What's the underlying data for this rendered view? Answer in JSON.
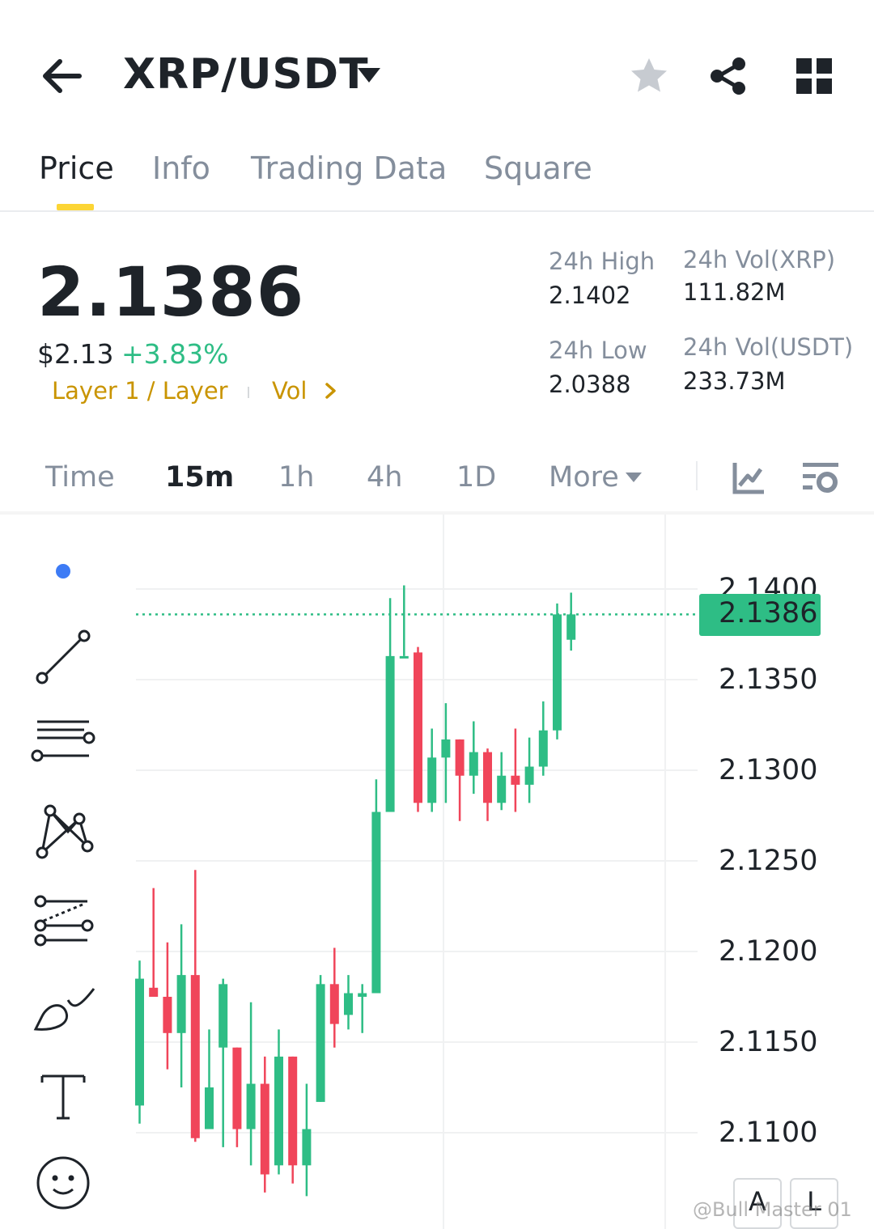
{
  "header": {
    "pair": "XRP/USDT"
  },
  "tabs": [
    {
      "label": "Price",
      "active": true
    },
    {
      "label": "Info",
      "active": false
    },
    {
      "label": "Trading Data",
      "active": false
    },
    {
      "label": "Square",
      "active": false
    }
  ],
  "ticker": {
    "last_price": "2.1386",
    "usd_price": "$2.13",
    "change_pct": "+3.83%",
    "tags": "Layer 1 / Layer",
    "vol_tag": "Vol",
    "stats": {
      "high_label": "24h High",
      "high_value": "2.1402",
      "low_label": "24h Low",
      "low_value": "2.0388",
      "vol_base_label": "24h Vol(XRP)",
      "vol_base_value": "111.82M",
      "vol_quote_label": "24h Vol(USDT)",
      "vol_quote_value": "233.73M"
    }
  },
  "intervals": [
    {
      "label": "Time",
      "active": false
    },
    {
      "label": "15m",
      "active": true
    },
    {
      "label": "1h",
      "active": false
    },
    {
      "label": "4h",
      "active": false
    },
    {
      "label": "1D",
      "active": false
    },
    {
      "label": "More",
      "active": false
    }
  ],
  "colors": {
    "up": "#2ebd85",
    "down": "#f0455a",
    "accent": "#fcd535",
    "tag": "#c99400"
  },
  "icons": {
    "back": "arrow-left-icon",
    "star": "star-icon",
    "share": "share-icon",
    "grid": "grid-icon",
    "indicator": "indicator-icon",
    "settings": "chart-settings-icon"
  },
  "drawing_tools": [
    "trend-line-icon",
    "parallel-lines-icon",
    "pattern-icon",
    "fib-icon",
    "brush-icon",
    "text-icon",
    "emoji-icon"
  ],
  "chart_data": {
    "type": "candlestick",
    "current_price": 2.1386,
    "current_price_label": "2.1386",
    "y_ticks": [
      2.14,
      2.135,
      2.13,
      2.125,
      2.12,
      2.115,
      2.11
    ],
    "y_tick_labels": [
      "2.1400",
      "2.1350",
      "2.1300",
      "2.1250",
      "2.1200",
      "2.1150",
      "2.1100"
    ],
    "ylim": [
      2.107,
      2.143
    ],
    "candles": [
      {
        "o": 2.1115,
        "h": 2.1195,
        "l": 2.1105,
        "c": 2.1185
      },
      {
        "o": 2.118,
        "h": 2.1235,
        "l": 2.1175,
        "c": 2.1175
      },
      {
        "o": 2.1175,
        "h": 2.1205,
        "l": 2.1135,
        "c": 2.1155
      },
      {
        "o": 2.1155,
        "h": 2.1215,
        "l": 2.1125,
        "c": 2.1187
      },
      {
        "o": 2.1187,
        "h": 2.1245,
        "l": 2.1095,
        "c": 2.1097
      },
      {
        "o": 2.1102,
        "h": 2.1157,
        "l": 2.1102,
        "c": 2.1125
      },
      {
        "o": 2.1147,
        "h": 2.1185,
        "l": 2.1092,
        "c": 2.1182
      },
      {
        "o": 2.1147,
        "h": 2.1147,
        "l": 2.1092,
        "c": 2.1102
      },
      {
        "o": 2.1102,
        "h": 2.1172,
        "l": 2.1082,
        "c": 2.1127
      },
      {
        "o": 2.1127,
        "h": 2.1142,
        "l": 2.1067,
        "c": 2.1077
      },
      {
        "o": 2.1082,
        "h": 2.1157,
        "l": 2.1077,
        "c": 2.1142
      },
      {
        "o": 2.1142,
        "h": 2.1142,
        "l": 2.1072,
        "c": 2.1082
      },
      {
        "o": 2.1082,
        "h": 2.1127,
        "l": 2.1065,
        "c": 2.1102
      },
      {
        "o": 2.1117,
        "h": 2.1187,
        "l": 2.1117,
        "c": 2.1182
      },
      {
        "o": 2.1182,
        "h": 2.1202,
        "l": 2.1147,
        "c": 2.116
      },
      {
        "o": 2.1165,
        "h": 2.1187,
        "l": 2.1157,
        "c": 2.1177
      },
      {
        "o": 2.1175,
        "h": 2.1182,
        "l": 2.1155,
        "c": 2.1177
      },
      {
        "o": 2.1177,
        "h": 2.1295,
        "l": 2.1177,
        "c": 2.1277
      },
      {
        "o": 2.1277,
        "h": 2.1395,
        "l": 2.1277,
        "c": 2.1363
      },
      {
        "o": 2.1363,
        "h": 2.1402,
        "l": 2.1363,
        "c": 2.1363
      },
      {
        "o": 2.1365,
        "h": 2.1368,
        "l": 2.1277,
        "c": 2.1282
      },
      {
        "o": 2.1282,
        "h": 2.1323,
        "l": 2.1277,
        "c": 2.1307
      },
      {
        "o": 2.1307,
        "h": 2.1337,
        "l": 2.1282,
        "c": 2.1317
      },
      {
        "o": 2.1317,
        "h": 2.1317,
        "l": 2.1272,
        "c": 2.1297
      },
      {
        "o": 2.1297,
        "h": 2.1327,
        "l": 2.1287,
        "c": 2.131
      },
      {
        "o": 2.131,
        "h": 2.1312,
        "l": 2.1272,
        "c": 2.1282
      },
      {
        "o": 2.1282,
        "h": 2.131,
        "l": 2.1278,
        "c": 2.1297
      },
      {
        "o": 2.1297,
        "h": 2.1323,
        "l": 2.1277,
        "c": 2.1292
      },
      {
        "o": 2.1292,
        "h": 2.1318,
        "l": 2.1282,
        "c": 2.1302
      },
      {
        "o": 2.1302,
        "h": 2.1338,
        "l": 2.1297,
        "c": 2.1322
      },
      {
        "o": 2.1322,
        "h": 2.1392,
        "l": 2.1317,
        "c": 2.1386
      },
      {
        "o": 2.1372,
        "h": 2.1398,
        "l": 2.1366,
        "c": 2.1386
      }
    ]
  },
  "footer": {
    "btn_a": "A",
    "btn_b": "L",
    "watermark": "@Bull Master 01"
  }
}
